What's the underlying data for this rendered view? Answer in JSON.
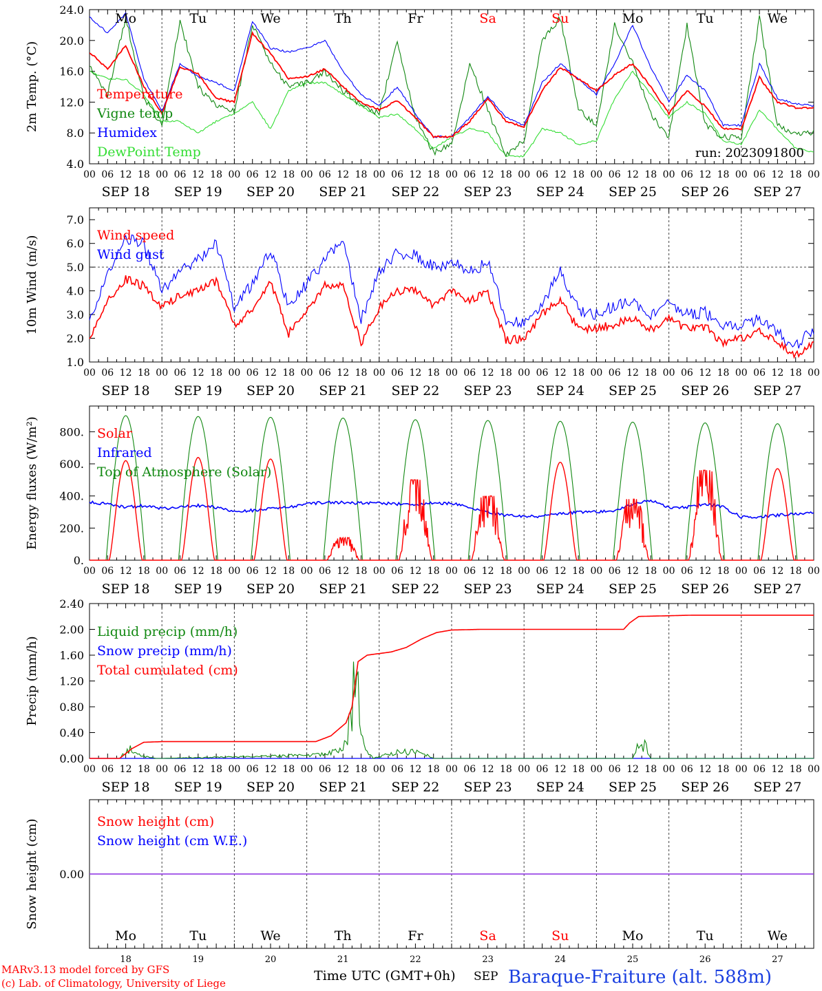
{
  "footer": {
    "credit1": "MARv3.13 model forced by GFS",
    "credit2": "(c) Lab. of Climatology, University of Liege",
    "xlabel": "Time UTC (GMT+0h)",
    "month": "SEP",
    "station": "Baraque-Fraiture (alt. 588m)"
  },
  "run_label": "run: 2023091800",
  "days": [
    "Mo",
    "Tu",
    "We",
    "Th",
    "Fr",
    "Sa",
    "Su",
    "Mo",
    "Tu",
    "We"
  ],
  "weekend_days": [
    5,
    6
  ],
  "date_labels": [
    "SEP 18",
    "SEP 19",
    "SEP 20",
    "SEP 21",
    "SEP 22",
    "SEP 23",
    "SEP 24",
    "SEP 25",
    "SEP 26",
    "SEP 27"
  ],
  "day_numbers": [
    "18",
    "19",
    "20",
    "21",
    "22",
    "23",
    "24",
    "25",
    "26",
    "27"
  ],
  "hour_labels": [
    "00",
    "06",
    "12",
    "18"
  ],
  "colors": {
    "red": "#ff0000",
    "green": "#118811",
    "blue": "#0000ff",
    "lightgreen": "#33dd33",
    "purple": "#8a2be2",
    "weekend": "#ff0000"
  },
  "chart_data": [
    {
      "type": "line",
      "ylabel": "2m Temp. (°C)",
      "ylim": [
        4,
        24
      ],
      "yticks": [
        "4.0",
        "8.0",
        "12.0",
        "16.0",
        "20.0",
        "24.0"
      ],
      "x_unit": "hours since 2023-09-18 00 UTC",
      "series": [
        {
          "name": "Temperature",
          "color": "red",
          "x": [
            0,
            6,
            12,
            18,
            24,
            30,
            36,
            42,
            48,
            54,
            60,
            66,
            72,
            78,
            84,
            90,
            96,
            102,
            108,
            114,
            120,
            126,
            132,
            138,
            144,
            150,
            156,
            162,
            168,
            174,
            180,
            186,
            192,
            198,
            204,
            210,
            216,
            222,
            228,
            234,
            240
          ],
          "values": [
            18.5,
            16.3,
            19.4,
            14.0,
            10.5,
            16.6,
            15.7,
            12.5,
            12.0,
            20.9,
            18.3,
            15.0,
            15.3,
            16.3,
            14.0,
            12.0,
            11.0,
            12.2,
            10.0,
            7.5,
            7.5,
            9.5,
            12.5,
            9.5,
            8.8,
            13.5,
            16.5,
            15.0,
            13.5,
            15.5,
            17.0,
            14.0,
            10.5,
            13.5,
            11.5,
            8.5,
            8.5,
            15.2,
            12.0,
            11.3,
            11.2
          ]
        },
        {
          "name": "Vigne temp",
          "color": "green",
          "x": [
            0,
            6,
            12,
            18,
            24,
            30,
            36,
            42,
            48,
            54,
            60,
            66,
            72,
            78,
            84,
            90,
            96,
            102,
            108,
            114,
            120,
            126,
            132,
            138,
            144,
            150,
            156,
            162,
            168,
            174,
            180,
            186,
            192,
            198,
            204,
            210,
            216,
            222,
            228,
            234,
            240
          ],
          "values": [
            16.5,
            13.0,
            23.0,
            12.5,
            9.0,
            22.5,
            14.0,
            11.5,
            10.8,
            22.0,
            17.0,
            14.0,
            14.5,
            16.0,
            13.5,
            11.5,
            10.5,
            20.0,
            10.0,
            5.5,
            6.5,
            17.0,
            11.0,
            5.0,
            7.0,
            20.0,
            23.0,
            11.0,
            9.0,
            22.0,
            17.0,
            10.5,
            7.5,
            22.0,
            9.0,
            7.5,
            7.5,
            23.0,
            9.0,
            8.0,
            8.0
          ]
        },
        {
          "name": "Humidex",
          "color": "blue",
          "x": [
            0,
            6,
            12,
            18,
            24,
            30,
            36,
            42,
            48,
            54,
            60,
            66,
            72,
            78,
            84,
            90,
            96,
            102,
            108,
            114,
            120,
            126,
            132,
            138,
            144,
            150,
            156,
            162,
            168,
            174,
            180,
            186,
            192,
            198,
            204,
            210,
            216,
            222,
            228,
            234,
            240
          ],
          "values": [
            23.0,
            21.0,
            23.5,
            15.0,
            10.8,
            17.0,
            15.3,
            14.5,
            13.5,
            22.5,
            19.0,
            18.5,
            19.0,
            20.0,
            16.0,
            13.0,
            11.5,
            14.0,
            10.5,
            7.5,
            7.5,
            10.0,
            12.8,
            10.0,
            9.0,
            14.5,
            17.0,
            15.0,
            13.0,
            17.0,
            22.0,
            16.5,
            12.0,
            15.5,
            13.5,
            9.0,
            9.0,
            17.0,
            12.5,
            11.8,
            11.5
          ]
        },
        {
          "name": "DewPoint Temp",
          "color": "lightgreen",
          "x": [
            0,
            6,
            12,
            18,
            24,
            30,
            36,
            42,
            48,
            54,
            60,
            66,
            72,
            78,
            84,
            90,
            96,
            102,
            108,
            114,
            120,
            126,
            132,
            138,
            144,
            150,
            156,
            162,
            168,
            174,
            180,
            186,
            192,
            198,
            204,
            210,
            216,
            222,
            228,
            234,
            240
          ],
          "values": [
            16.0,
            15.0,
            15.0,
            13.0,
            9.5,
            9.5,
            8.0,
            9.5,
            10.5,
            12.0,
            8.5,
            13.5,
            14.5,
            14.5,
            13.0,
            11.5,
            10.0,
            10.5,
            8.5,
            6.0,
            7.5,
            8.5,
            8.0,
            5.0,
            5.0,
            8.5,
            8.0,
            6.5,
            7.0,
            12.5,
            16.0,
            13.0,
            10.0,
            12.0,
            10.5,
            7.0,
            6.5,
            11.0,
            8.5,
            6.0,
            5.5
          ]
        }
      ]
    },
    {
      "type": "line",
      "ylabel": "10m Wind (m/s)",
      "ylim": [
        1,
        7.5
      ],
      "yticks": [
        "1.0",
        "2.0",
        "3.0",
        "4.0",
        "5.0",
        "6.0",
        "7.0"
      ],
      "reference_line": 5.0,
      "series": [
        {
          "name": "Wind speed",
          "color": "red",
          "x": [
            0,
            6,
            12,
            18,
            24,
            30,
            36,
            42,
            48,
            54,
            60,
            66,
            72,
            78,
            84,
            90,
            96,
            102,
            108,
            114,
            120,
            126,
            132,
            138,
            144,
            150,
            156,
            162,
            168,
            174,
            180,
            186,
            192,
            198,
            204,
            210,
            216,
            222,
            228,
            234,
            240
          ],
          "values": [
            2.0,
            3.6,
            4.5,
            4.2,
            3.3,
            3.8,
            4.0,
            4.4,
            2.6,
            3.2,
            4.4,
            2.2,
            3.2,
            4.2,
            4.2,
            1.8,
            3.3,
            4.0,
            4.0,
            3.4,
            4.0,
            3.6,
            3.9,
            1.9,
            2.0,
            3.0,
            3.6,
            2.4,
            2.4,
            2.6,
            2.8,
            2.4,
            2.8,
            2.4,
            2.5,
            1.8,
            2.0,
            2.4,
            1.8,
            1.3,
            1.8
          ]
        },
        {
          "name": "Wind gust",
          "color": "blue",
          "x": [
            0,
            6,
            12,
            18,
            24,
            30,
            36,
            42,
            48,
            54,
            60,
            66,
            72,
            78,
            84,
            90,
            96,
            102,
            108,
            114,
            120,
            126,
            132,
            138,
            144,
            150,
            156,
            162,
            168,
            174,
            180,
            186,
            192,
            198,
            204,
            210,
            216,
            222,
            228,
            234,
            240
          ],
          "values": [
            2.6,
            4.8,
            6.2,
            6.0,
            4.0,
            4.8,
            5.3,
            6.0,
            3.3,
            4.3,
            5.8,
            3.3,
            4.3,
            5.3,
            6.2,
            2.8,
            4.8,
            5.6,
            5.5,
            5.0,
            5.2,
            4.8,
            5.2,
            2.8,
            2.6,
            3.5,
            4.8,
            3.2,
            3.0,
            3.4,
            3.6,
            3.0,
            3.5,
            3.0,
            3.1,
            2.5,
            2.6,
            2.8,
            2.2,
            1.7,
            2.4
          ]
        }
      ]
    },
    {
      "type": "line",
      "ylabel": "Energy fluxes (W/m²)",
      "ylim": [
        0,
        960
      ],
      "yticks": [
        "0.",
        "200.",
        "400.",
        "600.",
        "800."
      ],
      "series": [
        {
          "name": "Solar",
          "color": "red",
          "peaks": [
            620,
            640,
            630,
            140,
            500,
            400,
            610,
            380,
            560,
            570
          ]
        },
        {
          "name": "Infrared",
          "color": "blue",
          "x": [
            0,
            6,
            12,
            18,
            24,
            30,
            36,
            42,
            48,
            54,
            60,
            66,
            72,
            78,
            84,
            90,
            96,
            102,
            108,
            114,
            120,
            126,
            132,
            138,
            144,
            150,
            156,
            162,
            168,
            174,
            180,
            186,
            192,
            198,
            204,
            210,
            216,
            222,
            228,
            234,
            240
          ],
          "values": [
            360,
            350,
            330,
            340,
            320,
            330,
            340,
            330,
            300,
            310,
            320,
            330,
            350,
            360,
            360,
            355,
            355,
            350,
            350,
            355,
            355,
            330,
            300,
            280,
            270,
            275,
            290,
            300,
            300,
            310,
            350,
            370,
            330,
            330,
            350,
            330,
            270,
            270,
            280,
            290,
            300
          ]
        },
        {
          "name": "Top of Atmosphere (Solar)",
          "color": "green",
          "peaks": [
            900,
            895,
            890,
            885,
            875,
            870,
            865,
            860,
            855,
            850
          ]
        }
      ]
    },
    {
      "type": "line",
      "ylabel": "Precip (mm/h)",
      "ylim": [
        0,
        2.4
      ],
      "yticks": [
        "0.00",
        "0.40",
        "0.80",
        "1.20",
        "1.60",
        "2.00",
        "2.40"
      ],
      "series": [
        {
          "name": "Liquid precip (mm/h)",
          "color": "green",
          "x": [
            0,
            10,
            13,
            16,
            22,
            24,
            76,
            80,
            84,
            86,
            88,
            90,
            94,
            100,
            104,
            110,
            114,
            118,
            180,
            182,
            184,
            186,
            240
          ],
          "values": [
            0,
            0,
            0.15,
            0.05,
            0,
            0,
            0.05,
            0.1,
            0.15,
            0.5,
            1.4,
            0.3,
            0,
            0.08,
            0.1,
            0.08,
            0,
            0,
            0,
            0.2,
            0.25,
            0,
            0
          ]
        },
        {
          "name": "Snow precip (mm/h)",
          "color": "blue",
          "x": [
            0,
            240
          ],
          "values": [
            0,
            0
          ]
        },
        {
          "name": "Total cumulated (cm)",
          "color": "red",
          "x": [
            0,
            10,
            14,
            18,
            24,
            75,
            80,
            85,
            87,
            89,
            92,
            100,
            105,
            110,
            115,
            120,
            130,
            150,
            177,
            179,
            182,
            200,
            240
          ],
          "values": [
            0,
            0,
            0.15,
            0.25,
            0.26,
            0.26,
            0.35,
            0.55,
            0.8,
            1.5,
            1.6,
            1.65,
            1.72,
            1.85,
            1.95,
            1.99,
            2.0,
            2.0,
            2.0,
            2.1,
            2.2,
            2.22,
            2.22
          ]
        }
      ]
    },
    {
      "type": "line",
      "ylabel": "Snow height (cm)",
      "yticks": [
        "0.00"
      ],
      "series": [
        {
          "name": "Snow height (cm)",
          "color": "red",
          "x": [
            0,
            240
          ],
          "values": [
            0,
            0
          ]
        },
        {
          "name": "Snow height (cm W.E.)",
          "color": "blue",
          "x": [
            0,
            240
          ],
          "values": [
            0,
            0
          ]
        }
      ]
    }
  ]
}
